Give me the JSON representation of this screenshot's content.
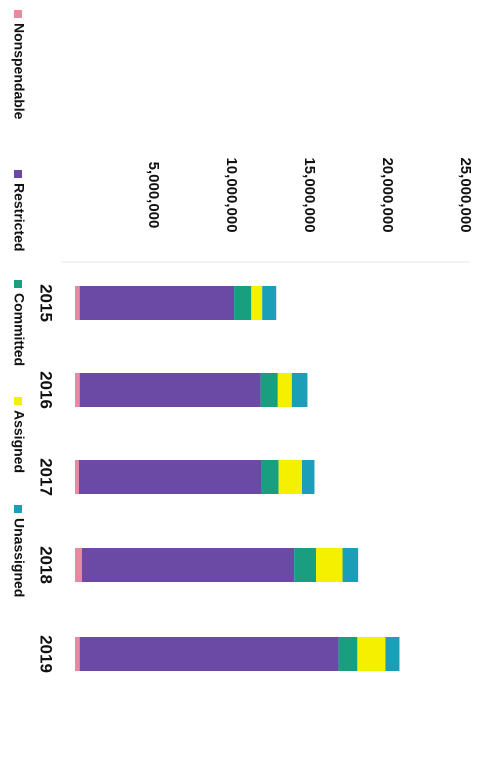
{
  "chart_data": {
    "type": "bar",
    "orientation": "horizontal-stacked",
    "categories": [
      "2015",
      "2016",
      "2017",
      "2018",
      "2019"
    ],
    "series": [
      {
        "name": "Nonspendable",
        "color": "#e88a9f",
        "values": [
          300000,
          300000,
          250000,
          450000,
          300000
        ]
      },
      {
        "name": "Restricted",
        "color": "#6b4aa6",
        "values": [
          9900000,
          11600000,
          11700000,
          13600000,
          16600000
        ]
      },
      {
        "name": "Committed",
        "color": "#1a9e80",
        "values": [
          1100000,
          1100000,
          1100000,
          1400000,
          1200000
        ]
      },
      {
        "name": "Assigned",
        "color": "#f5f000",
        "values": [
          700000,
          900000,
          1500000,
          1700000,
          1800000
        ]
      },
      {
        "name": "Unassigned",
        "color": "#1b9fb8",
        "values": [
          900000,
          1000000,
          800000,
          1000000,
          900000
        ]
      }
    ],
    "value_ticks": [
      "5,000,000",
      "10,000,000",
      "15,000,000",
      "20,000,000",
      "25,000,000"
    ],
    "value_tick_values": [
      5000000,
      10000000,
      15000000,
      20000000,
      25000000
    ],
    "xlim": [
      0,
      25000000
    ],
    "grid": false,
    "legend_position": "left"
  }
}
